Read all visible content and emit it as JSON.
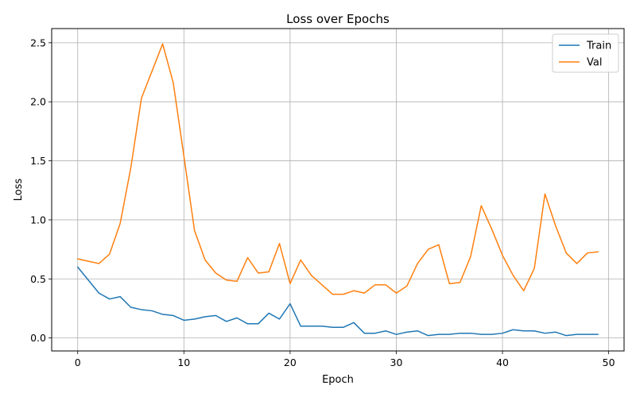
{
  "chart_data": {
    "type": "line",
    "title": "Loss over Epochs",
    "xlabel": "Epoch",
    "ylabel": "Loss",
    "xlim": [
      -2.45,
      51.45
    ],
    "ylim": [
      -0.11,
      2.62
    ],
    "xticks": [
      0,
      10,
      20,
      30,
      40,
      50
    ],
    "xtick_labels": [
      "0",
      "10",
      "20",
      "30",
      "40",
      "50"
    ],
    "yticks": [
      0.0,
      0.5,
      1.0,
      1.5,
      2.0,
      2.5
    ],
    "ytick_labels": [
      "0.0",
      "0.5",
      "1.0",
      "1.5",
      "2.0",
      "2.5"
    ],
    "grid": true,
    "legend_position": "top-right",
    "x": [
      0,
      1,
      2,
      3,
      4,
      5,
      6,
      7,
      8,
      9,
      10,
      11,
      12,
      13,
      14,
      15,
      16,
      17,
      18,
      19,
      20,
      21,
      22,
      23,
      24,
      25,
      26,
      27,
      28,
      29,
      30,
      31,
      32,
      33,
      34,
      35,
      36,
      37,
      38,
      39,
      40,
      41,
      42,
      43,
      44,
      45,
      46,
      47,
      48,
      49
    ],
    "series": [
      {
        "name": "Train",
        "color": "#1f77b4",
        "values": [
          0.6,
          0.49,
          0.38,
          0.33,
          0.35,
          0.26,
          0.24,
          0.23,
          0.2,
          0.19,
          0.15,
          0.16,
          0.18,
          0.19,
          0.14,
          0.17,
          0.12,
          0.12,
          0.21,
          0.16,
          0.29,
          0.1,
          0.1,
          0.1,
          0.09,
          0.09,
          0.13,
          0.04,
          0.04,
          0.06,
          0.03,
          0.05,
          0.06,
          0.02,
          0.03,
          0.03,
          0.04,
          0.04,
          0.03,
          0.03,
          0.04,
          0.07,
          0.06,
          0.06,
          0.04,
          0.05,
          0.02,
          0.03,
          0.03,
          0.03
        ]
      },
      {
        "name": "Val",
        "color": "#ff7f0e",
        "values": [
          0.67,
          0.65,
          0.63,
          0.71,
          0.97,
          1.44,
          2.03,
          2.26,
          2.49,
          2.16,
          1.54,
          0.91,
          0.66,
          0.55,
          0.49,
          0.48,
          0.68,
          0.55,
          0.56,
          0.8,
          0.46,
          0.66,
          0.53,
          0.45,
          0.37,
          0.37,
          0.4,
          0.38,
          0.45,
          0.45,
          0.38,
          0.44,
          0.63,
          0.75,
          0.79,
          0.46,
          0.47,
          0.69,
          1.12,
          0.92,
          0.7,
          0.53,
          0.4,
          0.59,
          1.22,
          0.95,
          0.72,
          0.63,
          0.72,
          0.73
        ]
      }
    ]
  }
}
